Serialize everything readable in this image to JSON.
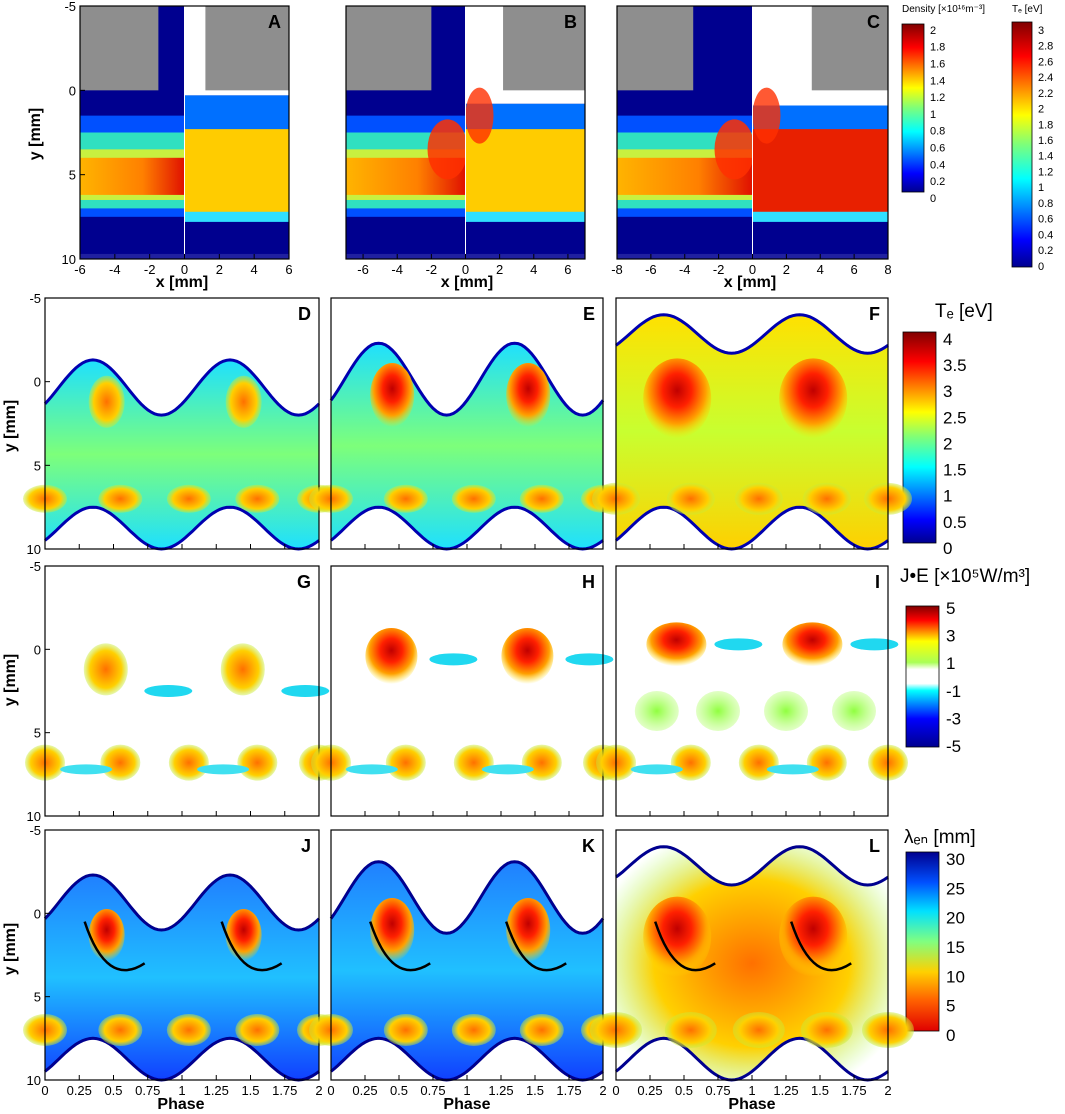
{
  "colors": {
    "gray_block": "#8e8e8e",
    "panel_border": "#000000",
    "background": "#ffffff"
  },
  "labels": {
    "y_axis": "y [mm]",
    "x_axis_mm": "x [mm]",
    "x_axis_phase": "Phase"
  },
  "colorbars": {
    "density": {
      "title": "Density [×10¹⁶m⁻³]",
      "ticks": [
        "2",
        "1.8",
        "1.6",
        "1.4",
        "1.2",
        "1",
        "0.8",
        "0.6",
        "0.4",
        "0.2",
        "0"
      ]
    },
    "te_small": {
      "title": "Tₑ [eV]",
      "ticks": [
        "3",
        "2.8",
        "2.6",
        "2.4",
        "2.2",
        "2",
        "1.8",
        "1.6",
        "1.4",
        "1.2",
        "1",
        "0.8",
        "0.6",
        "0.4",
        "0.2",
        "0"
      ]
    },
    "te": {
      "title": "Tₑ [eV]",
      "ticks": [
        "4",
        "3.5",
        "3",
        "2.5",
        "2",
        "1.5",
        "1",
        "0.5",
        "0"
      ]
    },
    "je": {
      "title": "J•E [×10⁵W/m³]",
      "ticks": [
        "5",
        "3",
        "1",
        "-1",
        "-3",
        "-5"
      ]
    },
    "lambda": {
      "title": "λₑₙ [mm]",
      "ticks": [
        "30",
        "25",
        "20",
        "15",
        "10",
        "5",
        "0"
      ]
    }
  },
  "chart_data": [
    {
      "type": "heatmap",
      "panel": "A",
      "title": "A",
      "xlabel": "x [mm]",
      "ylabel": "y [mm]",
      "xlim": [
        -6,
        6
      ],
      "ylim": [
        -5,
        10
      ],
      "x_ticks": [
        "-6",
        "-4",
        "-2",
        "0",
        "2",
        "4",
        "6"
      ],
      "y_ticks": [
        "-5",
        "0",
        "5",
        "10"
      ],
      "left_quantity": "Density",
      "right_quantity": "Te"
    },
    {
      "type": "heatmap",
      "panel": "B",
      "title": "B",
      "xlabel": "x [mm]",
      "ylabel": "",
      "xlim": [
        -7,
        7
      ],
      "ylim": [
        -5,
        10
      ],
      "x_ticks": [
        "-6",
        "-4",
        "-2",
        "0",
        "2",
        "4",
        "6"
      ],
      "left_quantity": "Density",
      "right_quantity": "Te"
    },
    {
      "type": "heatmap",
      "panel": "C",
      "title": "C",
      "xlabel": "x [mm]",
      "ylabel": "",
      "xlim": [
        -8,
        8
      ],
      "ylim": [
        -5,
        10
      ],
      "x_ticks": [
        "-8",
        "-6",
        "-4",
        "-2",
        "0",
        "2",
        "4",
        "6",
        "8"
      ],
      "left_quantity": "Density",
      "right_quantity": "Te"
    },
    {
      "type": "heatmap",
      "panel": "D",
      "title": "D",
      "ylabel": "y [mm]",
      "xlim": [
        0,
        2
      ],
      "ylim": [
        -5,
        10
      ],
      "y_ticks": [
        "-5",
        "0",
        "5",
        "10"
      ],
      "quantity": "Te [eV]",
      "range": [
        0,
        4
      ]
    },
    {
      "type": "heatmap",
      "panel": "E",
      "title": "E",
      "xlim": [
        0,
        2
      ],
      "ylim": [
        -5,
        10
      ],
      "quantity": "Te [eV]",
      "range": [
        0,
        4
      ]
    },
    {
      "type": "heatmap",
      "panel": "F",
      "title": "F",
      "xlim": [
        0,
        2
      ],
      "ylim": [
        -5,
        10
      ],
      "quantity": "Te [eV]",
      "range": [
        0,
        4
      ]
    },
    {
      "type": "heatmap",
      "panel": "G",
      "title": "G",
      "ylabel": "y [mm]",
      "xlim": [
        0,
        2
      ],
      "ylim": [
        -5,
        10
      ],
      "y_ticks": [
        "-5",
        "0",
        "5",
        "10"
      ],
      "quantity": "J•E",
      "range": [
        -5,
        5
      ]
    },
    {
      "type": "heatmap",
      "panel": "H",
      "title": "H",
      "xlim": [
        0,
        2
      ],
      "ylim": [
        -5,
        10
      ],
      "quantity": "J•E",
      "range": [
        -5,
        5
      ]
    },
    {
      "type": "heatmap",
      "panel": "I",
      "title": "I",
      "xlim": [
        0,
        2
      ],
      "ylim": [
        -5,
        10
      ],
      "quantity": "J•E",
      "range": [
        -5,
        5
      ]
    },
    {
      "type": "heatmap",
      "panel": "J",
      "title": "J",
      "xlabel": "Phase",
      "ylabel": "y [mm]",
      "xlim": [
        0,
        2
      ],
      "ylim": [
        -5,
        10
      ],
      "x_ticks": [
        "0",
        "0.25",
        "0.5",
        "0.75",
        "1",
        "1.25",
        "1.5",
        "1.75",
        "2"
      ],
      "y_ticks": [
        "-5",
        "0",
        "5",
        "10"
      ],
      "quantity": "λeN [mm]",
      "range": [
        0,
        30
      ]
    },
    {
      "type": "heatmap",
      "panel": "K",
      "title": "K",
      "xlabel": "Phase",
      "xlim": [
        0,
        2
      ],
      "ylim": [
        -5,
        10
      ],
      "x_ticks": [
        "0",
        "0.25",
        "0.5",
        "0.75",
        "1",
        "1.25",
        "1.5",
        "1.75",
        "2"
      ],
      "quantity": "λeN [mm]",
      "range": [
        0,
        30
      ]
    },
    {
      "type": "heatmap",
      "panel": "L",
      "title": "L",
      "xlabel": "Phase",
      "xlim": [
        0,
        2
      ],
      "ylim": [
        -5,
        10
      ],
      "x_ticks": [
        "0",
        "0.25",
        "0.5",
        "0.75",
        "1",
        "1.25",
        "1.5",
        "1.75",
        "2"
      ],
      "quantity": "λeN [mm]",
      "range": [
        0,
        30
      ]
    }
  ]
}
